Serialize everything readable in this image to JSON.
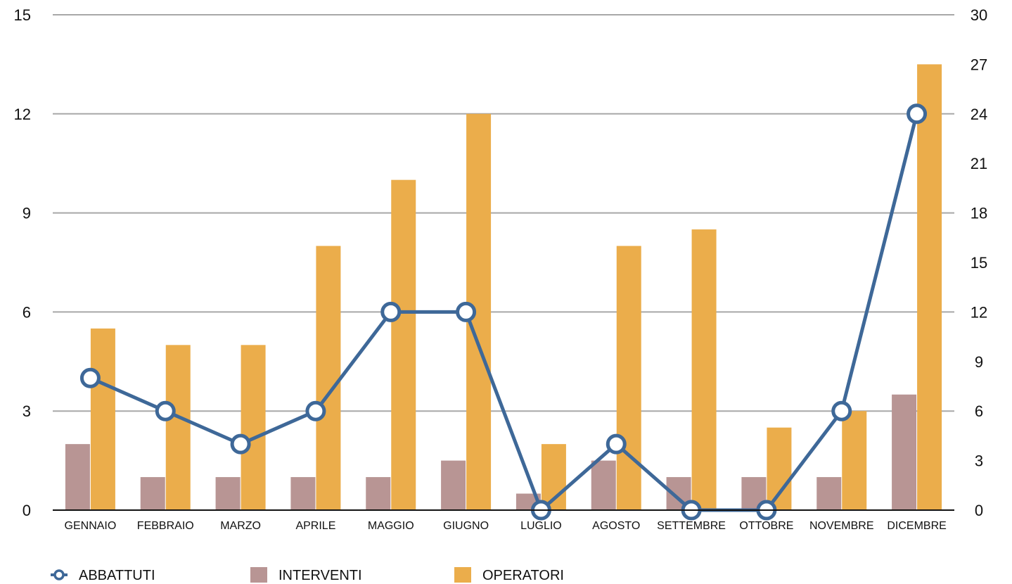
{
  "chart_data": {
    "type": "bar",
    "categories": [
      "GENNAIO",
      "FEBBRAIO",
      "MARZO",
      "APRILE",
      "MAGGIO",
      "GIUGNO",
      "LUGLIO",
      "AGOSTO",
      "SETTEMBRE",
      "OTTOBRE",
      "NOVEMBRE",
      "DICEMBRE"
    ],
    "series": [
      {
        "name": "INTERVENTI",
        "kind": "bar",
        "axis": "left",
        "color": "#b89594",
        "values": [
          2,
          1,
          1,
          1,
          1,
          1.5,
          0.5,
          1.5,
          1,
          1,
          1,
          3.5
        ]
      },
      {
        "name": "OPERATORI",
        "kind": "bar",
        "axis": "left",
        "color": "#ebad4b",
        "values": [
          5.5,
          5,
          5,
          8,
          10,
          12,
          2,
          8,
          8.5,
          2.5,
          3,
          13.5
        ]
      },
      {
        "name": "ABBATTUTI",
        "kind": "line",
        "axis": "right",
        "color": "#3e6898",
        "values": [
          8,
          6,
          4,
          6,
          12,
          12,
          0,
          4,
          0,
          0,
          6,
          24
        ]
      }
    ],
    "y_left": {
      "min": 0,
      "max": 15,
      "ticks": [
        0,
        3,
        6,
        9,
        12,
        15
      ]
    },
    "y_right": {
      "min": 0,
      "max": 30,
      "ticks": [
        0,
        3,
        6,
        9,
        12,
        15,
        18,
        21,
        24,
        27,
        30
      ]
    },
    "grid": true,
    "legend_position": "bottom-left",
    "legend_order": [
      "ABBATTUTI",
      "INTERVENTI",
      "OPERATORI"
    ]
  }
}
